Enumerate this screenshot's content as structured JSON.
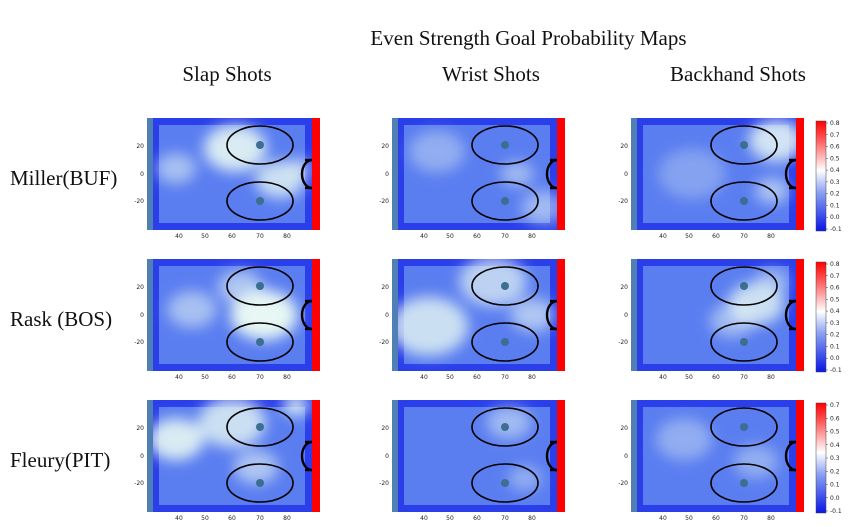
{
  "title": "Even Strength Goal Probability Maps",
  "columns": [
    "Slap Shots",
    "Wrist Shots",
    "Backhand Shots"
  ],
  "rows": [
    "Miller(BUF)",
    "Rask (BOS)",
    "Fleury(PIT)"
  ],
  "colors": {
    "low": "#0a16e6",
    "mid": "#5a7df0",
    "high": "#e7f7f3",
    "blue_line": "#4f7fb3",
    "goal_line": "#ff0000",
    "circle": "#000000"
  },
  "chart_data": {
    "type": "heatmap",
    "x_ticks": [
      "40",
      "50",
      "60",
      "70",
      "80"
    ],
    "y_ticks": [
      "20",
      "0",
      "-20"
    ],
    "colorbars": [
      {
        "row": 0,
        "labels": [
          "0.8",
          "0.7",
          "0.6",
          "0.5",
          "0.4",
          "0.3",
          "0.2",
          "0.1",
          "0.0",
          "-0.1"
        ]
      },
      {
        "row": 1,
        "labels": [
          "0.8",
          "0.7",
          "0.6",
          "0.5",
          "0.4",
          "0.3",
          "0.2",
          "0.1",
          "0.0",
          "-0.1"
        ]
      },
      {
        "row": 2,
        "labels": [
          "0.7",
          "0.6",
          "0.5",
          "0.4",
          "0.3",
          "0.2",
          "0.1",
          "0.0",
          "-0.1"
        ]
      }
    ],
    "panels": [
      {
        "row": 0,
        "col": 0,
        "hot": [
          [
            0.52,
            0.27,
            0.28,
            0.9
          ],
          [
            0.8,
            0.55,
            0.22,
            0.8
          ],
          [
            0.15,
            0.45,
            0.18,
            0.55
          ],
          [
            0.92,
            0.45,
            0.12,
            0.6
          ]
        ]
      },
      {
        "row": 0,
        "col": 1,
        "hot": [
          [
            0.25,
            0.3,
            0.25,
            0.4
          ],
          [
            0.75,
            0.5,
            0.15,
            0.5
          ],
          [
            0.92,
            0.8,
            0.2,
            0.5
          ]
        ]
      },
      {
        "row": 0,
        "col": 2,
        "hot": [
          [
            0.88,
            0.2,
            0.25,
            0.85
          ],
          [
            0.85,
            0.65,
            0.15,
            0.6
          ],
          [
            0.35,
            0.5,
            0.3,
            0.3
          ]
        ]
      },
      {
        "row": 1,
        "col": 0,
        "hot": [
          [
            0.7,
            0.5,
            0.3,
            1.0
          ],
          [
            0.25,
            0.45,
            0.22,
            0.55
          ],
          [
            0.55,
            0.25,
            0.2,
            0.6
          ]
        ]
      },
      {
        "row": 1,
        "col": 1,
        "hot": [
          [
            0.2,
            0.6,
            0.35,
            0.8
          ],
          [
            0.6,
            0.2,
            0.3,
            0.7
          ],
          [
            0.85,
            0.5,
            0.2,
            0.6
          ]
        ]
      },
      {
        "row": 1,
        "col": 2,
        "hot": [
          [
            0.75,
            0.4,
            0.25,
            0.8
          ],
          [
            0.6,
            0.55,
            0.2,
            0.5
          ],
          [
            0.85,
            0.2,
            0.15,
            0.5
          ]
        ]
      },
      {
        "row": 2,
        "col": 0,
        "hot": [
          [
            0.15,
            0.35,
            0.25,
            0.9
          ],
          [
            0.5,
            0.2,
            0.3,
            0.8
          ],
          [
            0.9,
            0.05,
            0.12,
            0.9
          ],
          [
            0.65,
            0.6,
            0.2,
            0.6
          ]
        ]
      },
      {
        "row": 2,
        "col": 1,
        "hot": [
          [
            0.7,
            0.2,
            0.2,
            0.5
          ],
          [
            0.8,
            0.7,
            0.15,
            0.4
          ]
        ]
      },
      {
        "row": 2,
        "col": 2,
        "hot": [
          [
            0.3,
            0.35,
            0.25,
            0.4
          ],
          [
            0.75,
            0.55,
            0.2,
            0.4
          ]
        ]
      }
    ]
  }
}
